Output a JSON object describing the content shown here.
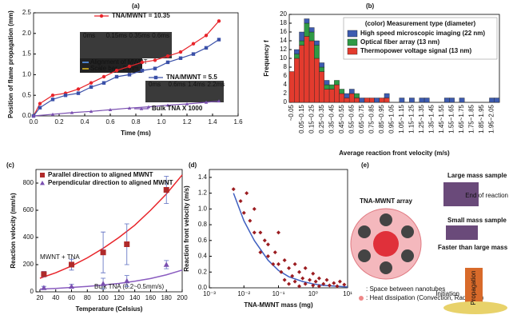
{
  "chart_data": [
    {
      "type": "line",
      "panel": "(a)",
      "xlabel": "Time (ms)",
      "ylabel": "Position of flame propagation (mm)",
      "xlim": [
        0,
        1.6
      ],
      "ylim": [
        0,
        2.5
      ],
      "xticks": [
        {
          "value": 0,
          "label": "0.0"
        },
        0.2,
        0.4,
        0.6,
        0.8,
        {
          "value": 1,
          "label": "1.0"
        },
        1.2,
        1.4,
        1.6
      ],
      "yticks": [
        {
          "value": 0,
          "label": "0.0"
        },
        0.5,
        {
          "value": 1,
          "label": "1.0"
        },
        1.5,
        {
          "value": 2,
          "label": "2.0"
        },
        2.5
      ],
      "annotations": [
        "Alignment of MWNT",
        "Scale bar : 2 mm"
      ],
      "inset_labels": [
        "0ms",
        "0.15ms",
        "0.35ms",
        "0.6ms",
        "0ms",
        "0.6ms",
        "1.4ms",
        "2.2ms"
      ],
      "series": [
        {
          "name": "TNA/MWNT = 10.35",
          "color": "#e8242a",
          "marker": "circle",
          "x": [
            0,
            0.05,
            0.15,
            0.25,
            0.35,
            0.45,
            0.55,
            0.65,
            0.75,
            0.85,
            0.95,
            1.05,
            1.15,
            1.25,
            1.35,
            1.45
          ],
          "values": [
            0,
            0.3,
            0.5,
            0.55,
            0.65,
            0.8,
            0.95,
            1.1,
            1.2,
            1.3,
            1.35,
            1.45,
            1.55,
            1.75,
            1.95,
            2.3
          ]
        },
        {
          "name": "TNA/MWNT = 5.5",
          "color": "#3a50a8",
          "marker": "square",
          "x": [
            0,
            0.05,
            0.15,
            0.25,
            0.35,
            0.45,
            0.55,
            0.65,
            0.75,
            0.85,
            0.95,
            1.05,
            1.15,
            1.25,
            1.35,
            1.45
          ],
          "values": [
            0,
            0.2,
            0.4,
            0.5,
            0.55,
            0.7,
            0.8,
            0.95,
            1.0,
            1.1,
            1.15,
            1.3,
            1.4,
            1.5,
            1.65,
            1.85
          ]
        },
        {
          "name": "Bulk TNA X 1000",
          "color": "#7a4fb0",
          "marker": "triangle",
          "x": [
            0,
            0.15,
            0.3,
            0.45,
            0.6,
            0.75,
            0.9,
            1.05,
            1.2,
            1.35,
            1.45
          ],
          "values": [
            0,
            0.04,
            0.08,
            0.11,
            0.15,
            0.19,
            0.22,
            0.26,
            0.29,
            0.33,
            0.36
          ]
        }
      ]
    },
    {
      "type": "bar",
      "panel": "(b)",
      "xlabel": "Average reaction front velocity (m/s)",
      "ylabel": "Frequency f",
      "stacked": true,
      "legend_title": "(color) Measurement type (diameter)",
      "legend": "upper right",
      "ylim": [
        0,
        20
      ],
      "yticks": [
        0,
        2,
        4,
        6,
        8,
        10,
        12,
        14,
        16,
        18,
        20
      ],
      "categories": [
        "~0.05",
        null,
        "0.05~0.15",
        null,
        "0.15~0.25",
        null,
        "0.25~0.35",
        null,
        "0.35~0.45",
        null,
        "0.45~0.55",
        null,
        "0.55~0.65",
        null,
        "0.65~0.75",
        null,
        "0.75~0.85",
        null,
        "0.85~0.95",
        null,
        "0.95~1.05",
        null,
        "1.05~1.15",
        null,
        "1.15~1.25",
        null,
        "1.25~1.35",
        null,
        "1.35~1.45",
        null,
        "1.45~1.55",
        null,
        "1.55~1.65",
        null,
        "1.65~1.75",
        null,
        "1.75~1.85",
        null,
        "1.85~1.95",
        null,
        "1.95~2.05",
        null
      ],
      "series": [
        {
          "name": "Thermopower voltage signal (13 nm)",
          "color": "#e33b2e",
          "values": [
            7,
            10,
            13,
            15,
            14,
            10,
            7,
            3,
            3,
            4,
            2,
            1,
            2,
            1,
            0,
            1,
            1,
            0,
            1,
            1,
            0,
            0,
            0,
            0,
            0,
            0,
            0,
            0,
            0,
            0,
            0,
            0,
            0,
            0,
            0,
            0,
            0,
            0,
            0,
            0,
            0,
            0
          ]
        },
        {
          "name": "Optical fiber array (13 nm)",
          "color": "#2f9a45",
          "values": [
            0,
            1,
            1,
            3,
            2,
            3,
            1,
            1,
            1,
            1,
            1,
            0,
            0,
            1,
            0,
            0,
            0,
            0,
            0,
            0,
            0,
            0,
            0,
            0,
            0,
            0,
            0,
            0,
            0,
            0,
            0,
            0,
            0,
            0,
            0,
            0,
            0,
            0,
            0,
            0,
            0,
            0
          ]
        },
        {
          "name": "High speed microscopic imaging (22 nm)",
          "color": "#3d5bb0",
          "values": [
            0,
            1,
            2,
            1,
            1,
            1,
            1,
            1,
            0,
            0,
            0,
            1,
            1,
            0,
            1,
            0,
            0,
            1,
            0,
            1,
            0,
            0,
            1,
            0,
            1,
            0,
            1,
            1,
            0,
            0,
            0,
            1,
            1,
            0,
            1,
            0,
            0,
            0,
            0,
            0,
            1,
            1
          ]
        }
      ]
    },
    {
      "type": "scatter",
      "panel": "(c)",
      "xlabel": "Temperature (Celsius)",
      "ylabel": "Reaction velocity (mm/s)",
      "xlim": [
        15,
        200
      ],
      "ylim": [
        0,
        900
      ],
      "xticks": [
        20,
        40,
        60,
        80,
        100,
        120,
        140,
        160,
        180,
        200
      ],
      "yticks": [
        0,
        200,
        400,
        600,
        800
      ],
      "legend": "upper left",
      "series": [
        {
          "name": "Parallel direction to aligned MWNT",
          "color": "#b02a2a",
          "marker": "square",
          "x": [
            25,
            60,
            100,
            130,
            180
          ],
          "values": [
            130,
            200,
            290,
            350,
            750
          ],
          "errors": [
            20,
            40,
            150,
            150,
            100
          ]
        },
        {
          "name": "Perpendicular direction to aligned MWNT",
          "color": "#7a4fb0",
          "marker": "triangle",
          "x": [
            25,
            60,
            100,
            130,
            180
          ],
          "values": [
            30,
            40,
            60,
            80,
            200
          ],
          "errors": [
            10,
            15,
            40,
            40,
            30
          ]
        }
      ],
      "fits": [
        {
          "label": "MWNT + TNA",
          "color": "#e8242a",
          "x": [
            20,
            40,
            60,
            80,
            100,
            120,
            140,
            160,
            180,
            200
          ],
          "values": [
            100,
            140,
            190,
            250,
            320,
            400,
            490,
            600,
            720,
            860
          ]
        },
        {
          "label": "Bulk TNA (0.2~0.5mm/s)",
          "color": "#8a5cc0",
          "x": [
            20,
            40,
            60,
            80,
            100,
            120,
            140,
            160,
            180,
            200
          ],
          "values": [
            20,
            25,
            32,
            40,
            50,
            62,
            78,
            98,
            125,
            160
          ]
        }
      ]
    },
    {
      "type": "scatter",
      "panel": "(d)",
      "xlabel": "TNA-MWNT mass (mg)",
      "ylabel": "Reaction front velocity (m/s)",
      "xlog": true,
      "xlim": [
        0.001,
        10
      ],
      "ylim": [
        0,
        1.5
      ],
      "xticks": [
        {
          "value": 0.001,
          "label": "10⁻³"
        },
        {
          "value": 0.01,
          "label": "10⁻²"
        },
        {
          "value": 0.1,
          "label": "10⁻¹"
        },
        {
          "value": 1,
          "label": "10⁰"
        },
        {
          "value": 10,
          "label": "10¹"
        }
      ],
      "yticks": [
        {
          "value": 0,
          "label": "0.0"
        },
        0.2,
        0.4,
        0.6,
        0.8,
        {
          "value": 1,
          "label": "1.0"
        },
        1.2,
        1.4
      ],
      "color": "#9b1c20",
      "marker": "diamond",
      "x": [
        0.005,
        0.008,
        0.01,
        0.012,
        0.015,
        0.02,
        0.02,
        0.03,
        0.03,
        0.04,
        0.05,
        0.05,
        0.07,
        0.08,
        0.1,
        0.1,
        0.12,
        0.15,
        0.15,
        0.2,
        0.2,
        0.25,
        0.3,
        0.3,
        0.4,
        0.4,
        0.5,
        0.6,
        0.6,
        0.8,
        1,
        1,
        1.2,
        1.5,
        1.5,
        2,
        2.5,
        3,
        4,
        5,
        6,
        8
      ],
      "values": [
        1.25,
        1.1,
        0.95,
        1.2,
        0.85,
        0.7,
        1.0,
        0.7,
        0.45,
        0.6,
        0.4,
        0.55,
        0.3,
        0.45,
        0.7,
        0.3,
        0.2,
        0.35,
        0.1,
        0.25,
        0.05,
        0.15,
        0.3,
        0.08,
        0.2,
        0.02,
        0.12,
        0.25,
        0.05,
        0.1,
        0.18,
        0.03,
        0.08,
        0.12,
        0.02,
        0.05,
        0.1,
        0.03,
        0.06,
        0.02,
        0.08,
        0.04
      ],
      "fits": [
        {
          "color": "#4060c0",
          "x": [
            0.005,
            0.01,
            0.02,
            0.05,
            0.1,
            0.2,
            0.5,
            1,
            2,
            5,
            10
          ],
          "values": [
            1.2,
            0.85,
            0.6,
            0.35,
            0.22,
            0.14,
            0.08,
            0.05,
            0.03,
            0.02,
            0.01
          ]
        }
      ]
    }
  ],
  "panel_e": {
    "panel": "(e)",
    "title": "TNA-MWNT array",
    "legend": [
      ": Space between nanotubes",
      ": Heat dissipation (Convection, Radiation)"
    ],
    "labels": [
      "Large mass sample",
      "Small mass sample",
      "Faster than large mass case",
      "End of reaction",
      "Initiation",
      "Propagation"
    ]
  }
}
